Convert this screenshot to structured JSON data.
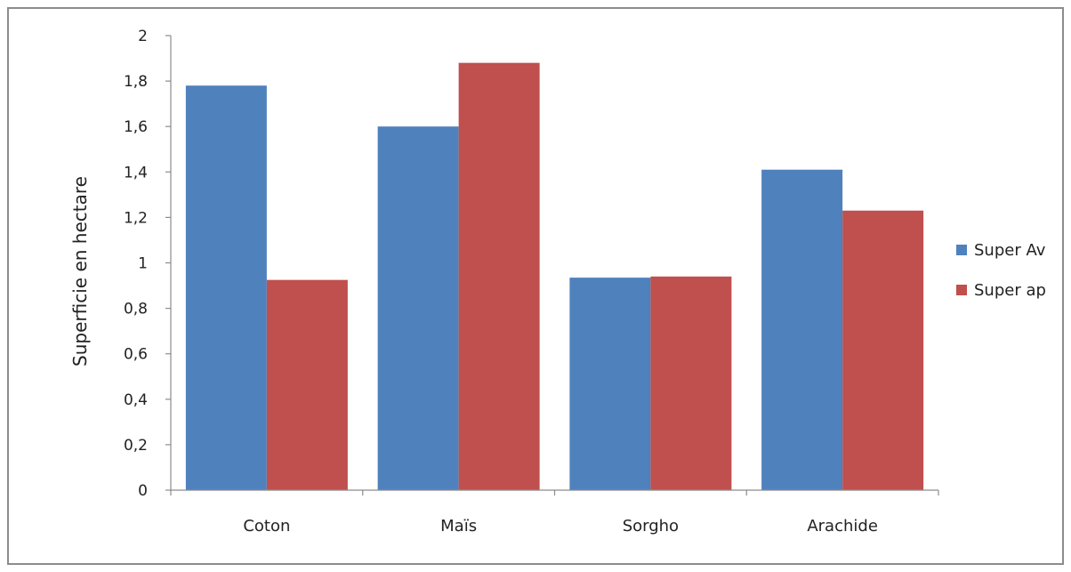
{
  "chart_data": {
    "type": "bar",
    "categories": [
      "Coton",
      "Maïs",
      "Sorgho",
      "Arachide"
    ],
    "series": [
      {
        "name": "Super Av",
        "values": [
          1.78,
          1.6,
          0.935,
          1.41
        ],
        "color": "#4f81bd"
      },
      {
        "name": "Super ap",
        "values": [
          0.925,
          1.88,
          0.94,
          1.23
        ],
        "color": "#c0504d"
      }
    ],
    "title": "",
    "xlabel": "",
    "ylabel": "Superficie en hectare",
    "ylim": [
      0,
      2
    ],
    "yticks": [
      "0",
      "0,2",
      "0,4",
      "0,6",
      "0,8",
      "1",
      "1,2",
      "1,4",
      "1,6",
      "1,8",
      "2"
    ],
    "grid": false,
    "legend_position": "right"
  }
}
